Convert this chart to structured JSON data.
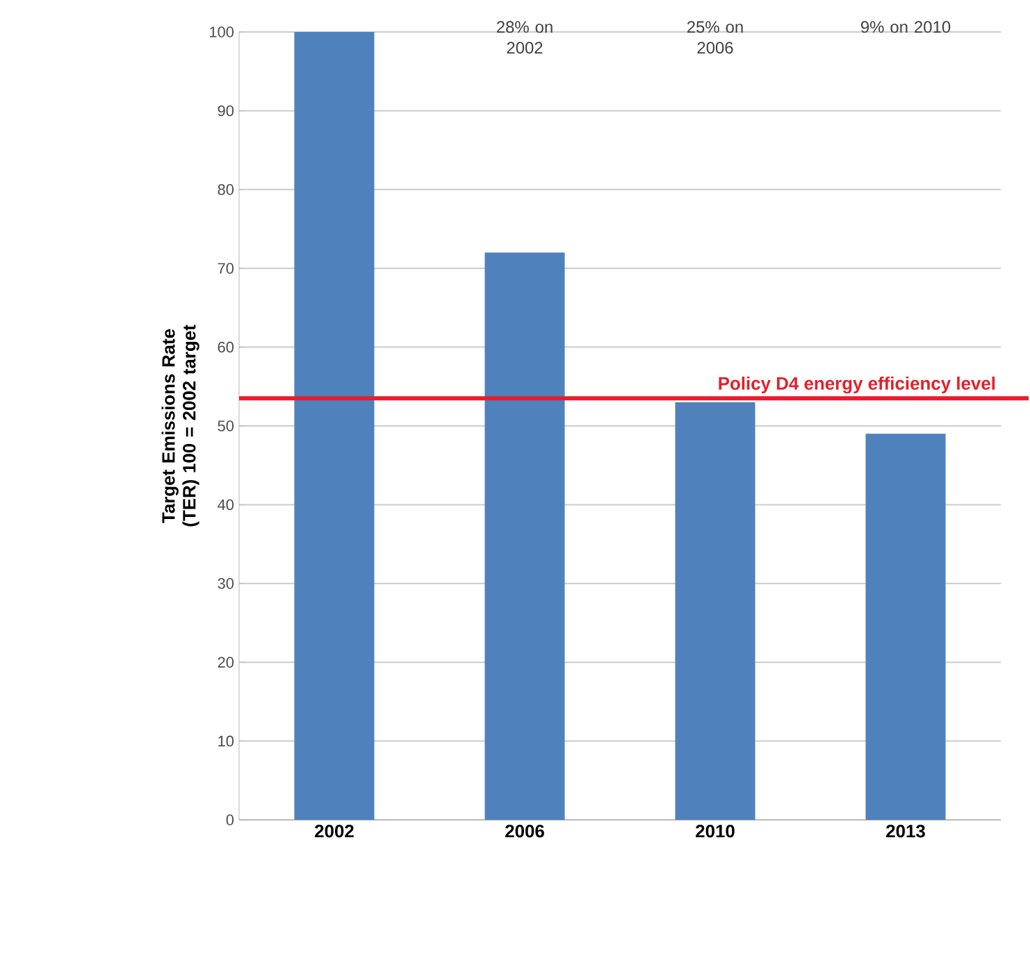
{
  "chart_data": {
    "type": "bar",
    "ylabel": "Target Emissions Rate (TER) 100 = 2002 target",
    "categories": [
      "2002",
      "2006",
      "2010",
      "2013"
    ],
    "values": [
      100,
      72,
      53,
      49
    ],
    "color": "#4f81bd",
    "ylim": [
      0,
      100
    ],
    "yticks": [
      0,
      10,
      20,
      30,
      40,
      50,
      60,
      70,
      80,
      90,
      100
    ],
    "grid": "y",
    "ref_lines": [
      {
        "axis": "y",
        "value": 53.5,
        "label": "Policy D4 energy efficiency level",
        "color": "#e3202a"
      }
    ],
    "annotations": [
      "28% on 2002",
      "25% on 2006",
      "9% on 2010"
    ]
  }
}
